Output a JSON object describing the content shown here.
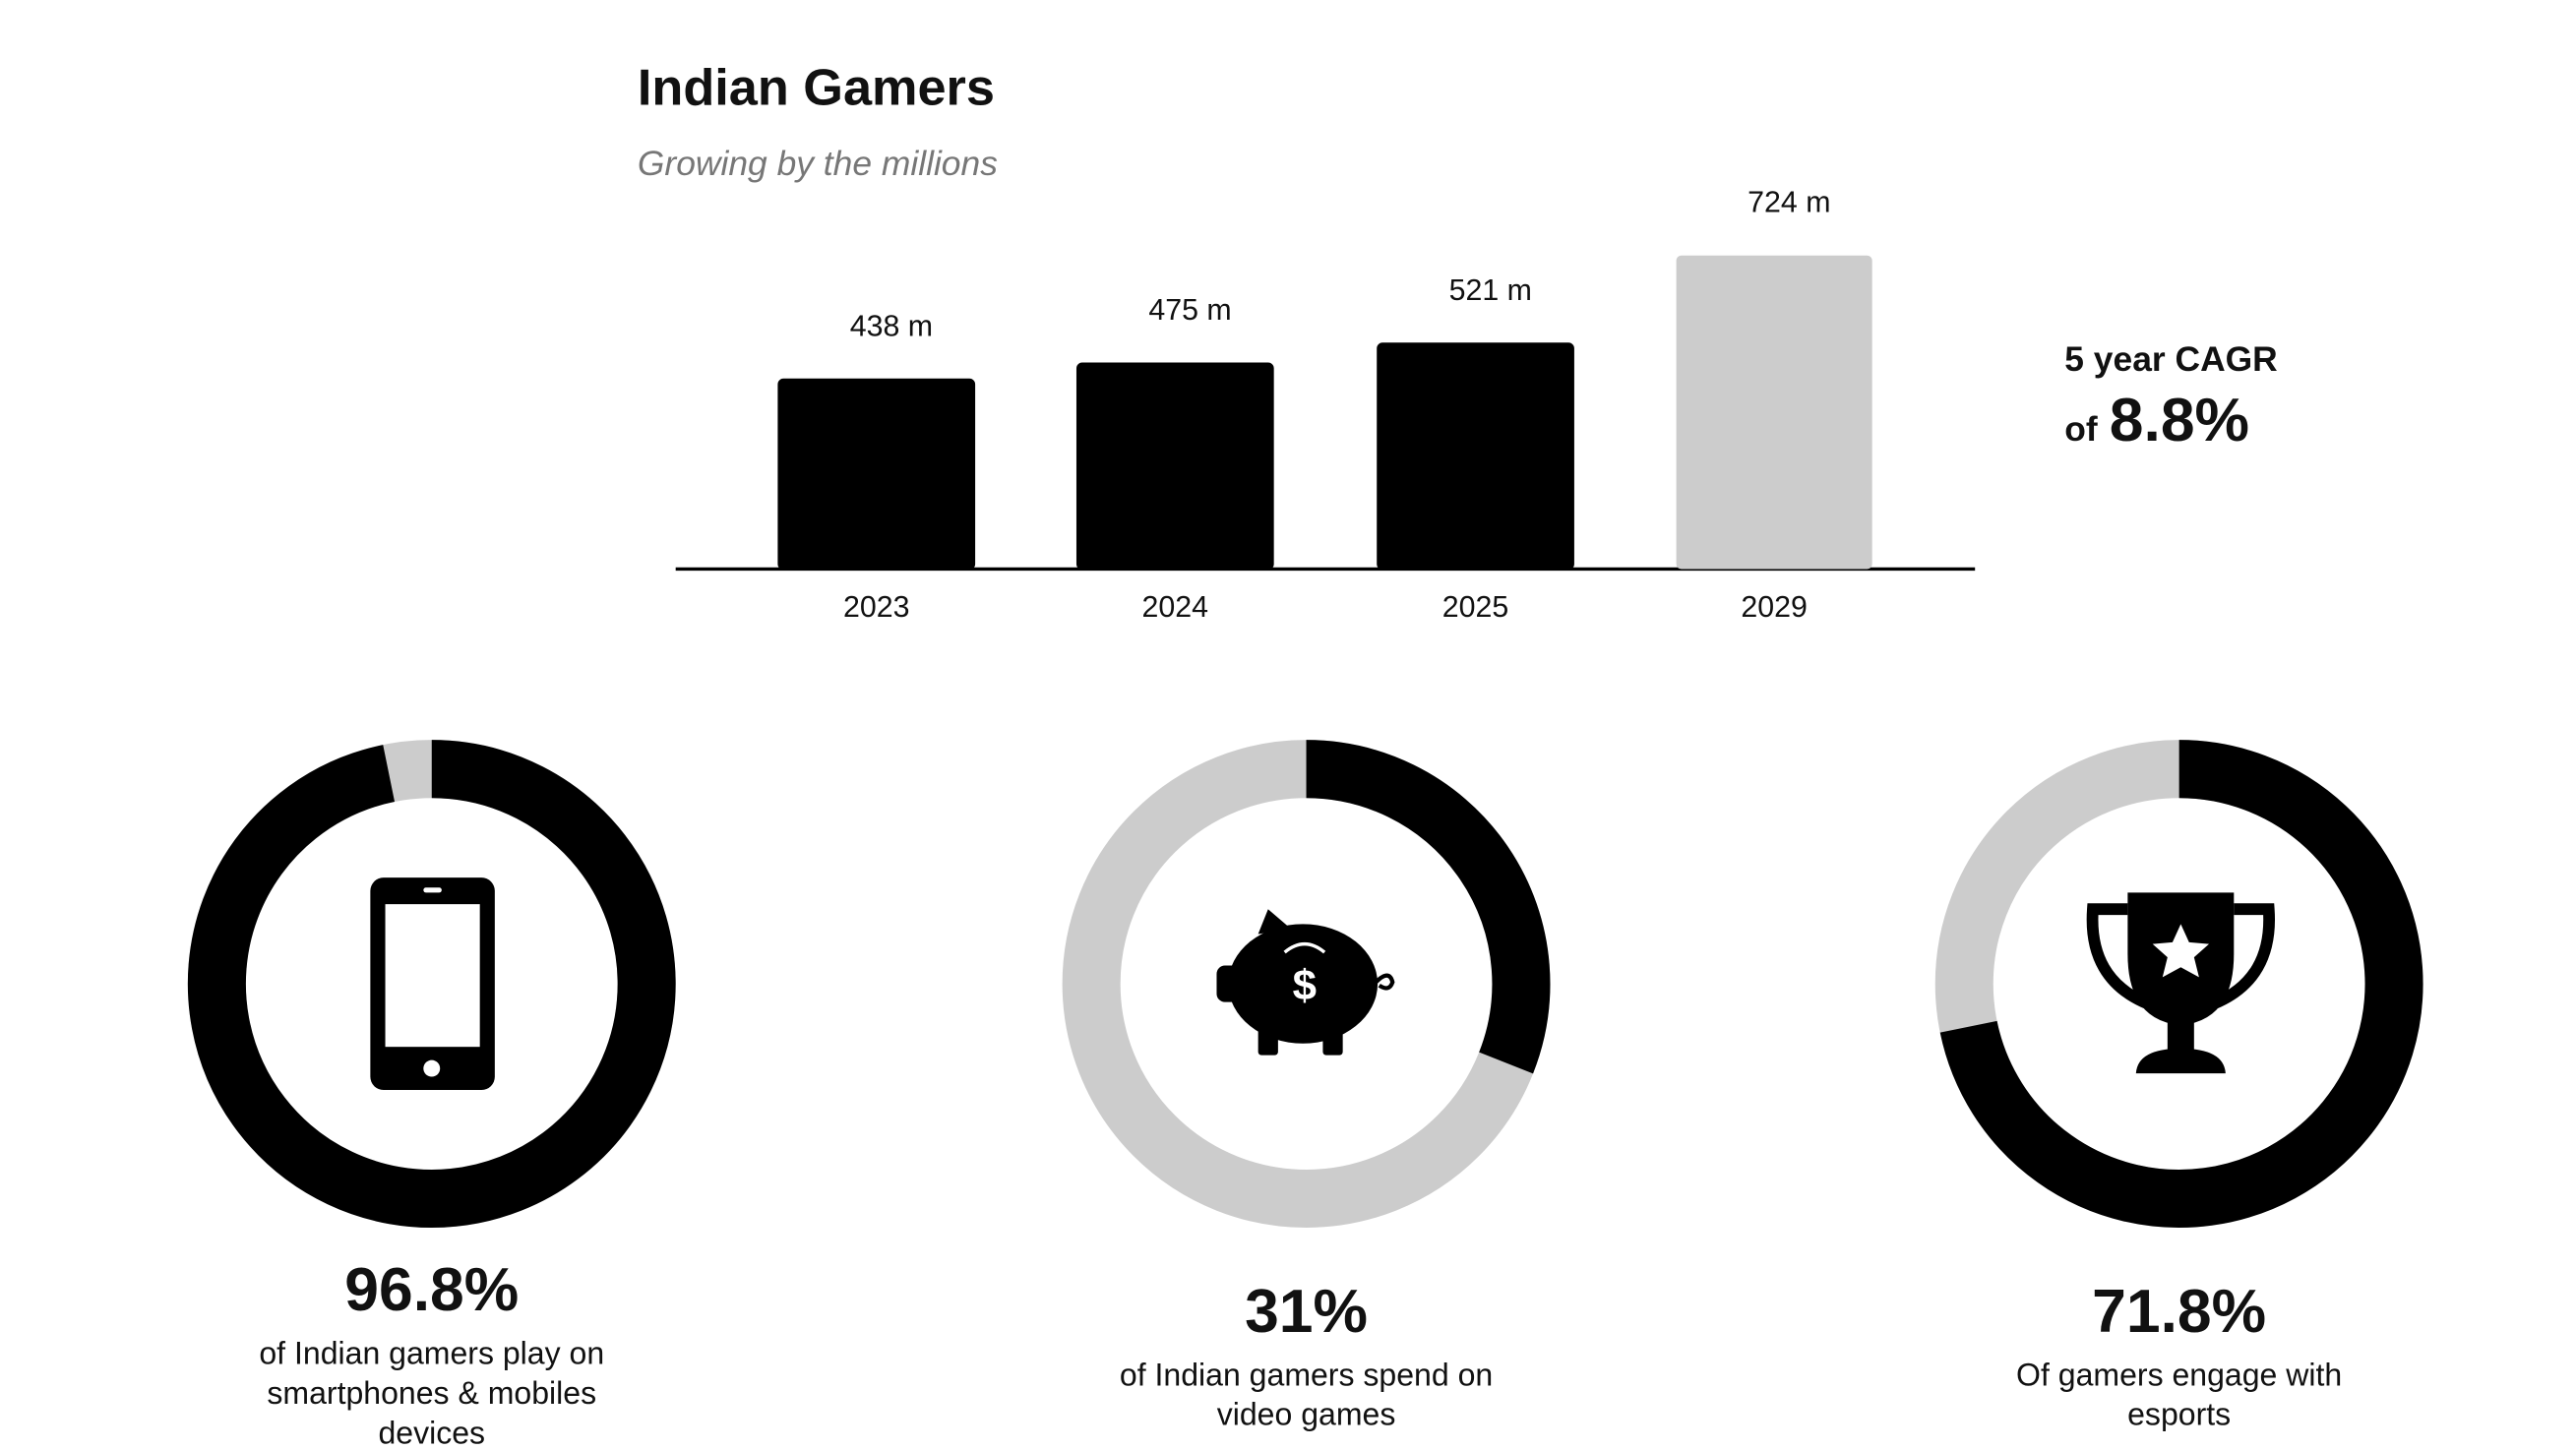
{
  "chart_data": [
    {
      "type": "bar",
      "title": "Indian Gamers",
      "subtitle": "Growing by the millions",
      "categories": [
        "2023",
        "2024",
        "2025",
        "2029"
      ],
      "values": [
        438,
        475,
        521,
        724
      ],
      "value_labels": [
        "438 m",
        "475 m",
        "521 m",
        "724 m"
      ],
      "colors": [
        "#000000",
        "#000000",
        "#000000",
        "#cccccc"
      ],
      "annotation": {
        "line1": "5 year CAGR",
        "prefix": "of",
        "value": "8.8%"
      }
    },
    {
      "type": "donut",
      "values": [
        96.8
      ],
      "value_labels": [
        "96.8%"
      ],
      "caption": [
        "of Indian gamers play on",
        "smartphones & mobiles",
        "devices"
      ],
      "color": "#000000",
      "track_color": "#cccccc"
    },
    {
      "type": "donut",
      "values": [
        31
      ],
      "value_labels": [
        "31%"
      ],
      "caption": [
        "of Indian gamers spend on",
        "video games"
      ],
      "color": "#000000",
      "track_color": "#cccccc"
    },
    {
      "type": "donut",
      "values": [
        71.8
      ],
      "value_labels": [
        "71.8%"
      ],
      "caption": [
        "Of gamers engage with",
        "esports"
      ],
      "color": "#000000",
      "track_color": "#cccccc"
    }
  ]
}
